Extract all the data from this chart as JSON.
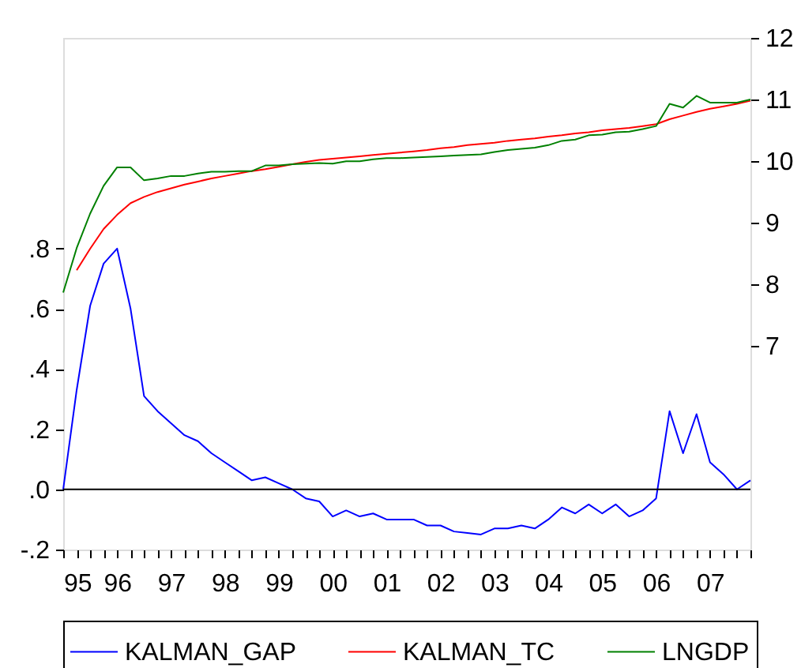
{
  "chart_data": {
    "type": "line",
    "x": [
      1995,
      1995.25,
      1995.5,
      1995.75,
      1996,
      1996.25,
      1996.5,
      1996.75,
      1997,
      1997.25,
      1997.5,
      1997.75,
      1998,
      1998.25,
      1998.5,
      1998.75,
      1999,
      1999.25,
      1999.5,
      1999.75,
      2000,
      2000.25,
      2000.5,
      2000.75,
      2001,
      2001.25,
      2001.5,
      2001.75,
      2002,
      2002.25,
      2002.5,
      2002.75,
      2003,
      2003.25,
      2003.5,
      2003.75,
      2004,
      2004.25,
      2004.5,
      2004.75,
      2005,
      2005.25,
      2005.5,
      2005.75,
      2006,
      2006.25,
      2006.5,
      2006.75,
      2007,
      2007.25,
      2007.5,
      2007.75
    ],
    "series": [
      {
        "name": "KALMAN_GAP",
        "color": "#0000ff",
        "values": [
          0,
          0.33,
          0.61,
          0.75,
          0.8,
          0.6,
          0.31,
          0.26,
          0.22,
          0.18,
          0.16,
          0.12,
          0.09,
          0.06,
          0.03,
          0.04,
          0.02,
          0.0,
          -0.03,
          -0.04,
          -0.09,
          -0.07,
          -0.09,
          -0.08,
          -0.1,
          -0.1,
          -0.1,
          -0.12,
          -0.12,
          -0.14,
          -0.145,
          -0.15,
          -0.13,
          -0.13,
          -0.12,
          -0.13,
          -0.1,
          -0.06,
          -0.08,
          -0.05,
          -0.08,
          -0.05,
          -0.09,
          -0.07,
          -0.03,
          0.26,
          0.12,
          0.25,
          0.09,
          0.05,
          0.0,
          0.03
        ]
      },
      {
        "name": "KALMAN_TC",
        "color": "#ff0000",
        "axis": "y2",
        "values": [
          null,
          8.23,
          8.58,
          8.9,
          9.13,
          9.32,
          9.42,
          9.5,
          9.56,
          9.62,
          9.67,
          9.72,
          9.76,
          9.8,
          9.84,
          9.87,
          9.91,
          9.95,
          9.99,
          10.02,
          10.04,
          10.06,
          10.08,
          10.1,
          10.12,
          10.14,
          10.16,
          10.18,
          10.21,
          10.23,
          10.26,
          10.28,
          10.3,
          10.33,
          10.35,
          10.37,
          10.4,
          10.42,
          10.45,
          10.47,
          10.5,
          10.52,
          10.54,
          10.57,
          10.6,
          10.68,
          10.74,
          10.8,
          10.85,
          10.89,
          10.93,
          10.98
        ]
      },
      {
        "name": "LNGDP",
        "color": "#008000",
        "axis": "y2",
        "values": [
          7.87,
          8.59,
          9.15,
          9.6,
          9.9,
          9.9,
          9.69,
          9.72,
          9.76,
          9.76,
          9.8,
          9.83,
          9.83,
          9.84,
          9.84,
          9.93,
          9.93,
          9.95,
          9.96,
          9.97,
          9.96,
          10.0,
          10.0,
          10.03,
          10.05,
          10.05,
          10.06,
          10.07,
          10.08,
          10.09,
          10.1,
          10.11,
          10.15,
          10.18,
          10.2,
          10.22,
          10.26,
          10.33,
          10.35,
          10.42,
          10.43,
          10.47,
          10.48,
          10.52,
          10.57,
          10.93,
          10.87,
          11.06,
          10.95,
          10.95,
          10.95,
          11.0
        ]
      }
    ],
    "xlim": [
      1995,
      2007.75
    ],
    "xticks": [
      {
        "value": 1995,
        "label": "95"
      },
      {
        "value": 1995.25,
        "label": null
      },
      {
        "value": 1995.5,
        "label": null
      },
      {
        "value": 1995.75,
        "label": null
      },
      {
        "value": 1996,
        "label": "96"
      },
      {
        "value": 1996.25,
        "label": null
      },
      {
        "value": 1996.5,
        "label": null
      },
      {
        "value": 1996.75,
        "label": null
      },
      {
        "value": 1997,
        "label": "97"
      },
      {
        "value": 1997.25,
        "label": null
      },
      {
        "value": 1997.5,
        "label": null
      },
      {
        "value": 1997.75,
        "label": null
      },
      {
        "value": 1998,
        "label": "98"
      },
      {
        "value": 1998.25,
        "label": null
      },
      {
        "value": 1998.5,
        "label": null
      },
      {
        "value": 1998.75,
        "label": null
      },
      {
        "value": 1999,
        "label": "99"
      },
      {
        "value": 1999.25,
        "label": null
      },
      {
        "value": 1999.5,
        "label": null
      },
      {
        "value": 1999.75,
        "label": null
      },
      {
        "value": 2000,
        "label": "00"
      },
      {
        "value": 2000.25,
        "label": null
      },
      {
        "value": 2000.5,
        "label": null
      },
      {
        "value": 2000.75,
        "label": null
      },
      {
        "value": 2001,
        "label": "01"
      },
      {
        "value": 2001.25,
        "label": null
      },
      {
        "value": 2001.5,
        "label": null
      },
      {
        "value": 2001.75,
        "label": null
      },
      {
        "value": 2002,
        "label": "02"
      },
      {
        "value": 2002.25,
        "label": null
      },
      {
        "value": 2002.5,
        "label": null
      },
      {
        "value": 2002.75,
        "label": null
      },
      {
        "value": 2003,
        "label": "03"
      },
      {
        "value": 2003.25,
        "label": null
      },
      {
        "value": 2003.5,
        "label": null
      },
      {
        "value": 2003.75,
        "label": null
      },
      {
        "value": 2004,
        "label": "04"
      },
      {
        "value": 2004.25,
        "label": null
      },
      {
        "value": 2004.5,
        "label": null
      },
      {
        "value": 2004.75,
        "label": null
      },
      {
        "value": 2005,
        "label": "05"
      },
      {
        "value": 2005.25,
        "label": null
      },
      {
        "value": 2005.5,
        "label": null
      },
      {
        "value": 2005.75,
        "label": null
      },
      {
        "value": 2006,
        "label": "06"
      },
      {
        "value": 2006.25,
        "label": null
      },
      {
        "value": 2006.5,
        "label": null
      },
      {
        "value": 2006.75,
        "label": null
      },
      {
        "value": 2007,
        "label": "07"
      },
      {
        "value": 2007.25,
        "label": null
      },
      {
        "value": 2007.5,
        "label": null
      },
      {
        "value": 2007.75,
        "label": null
      }
    ],
    "ylim": [
      -0.2,
      1.5
    ],
    "yticks": [
      {
        "value": -0.2,
        "label": "-.2"
      },
      {
        "value": 0,
        "label": ".0"
      },
      {
        "value": 0.2,
        "label": ".2"
      },
      {
        "value": 0.4,
        "label": ".4"
      },
      {
        "value": 0.6,
        "label": ".6"
      },
      {
        "value": 0.8,
        "label": ".8"
      }
    ],
    "y2lim": [
      3.7,
      12
    ],
    "y2ticks": [
      7,
      8,
      9,
      10,
      11,
      12
    ],
    "ref_lines": [
      {
        "axis": "y",
        "value": 0,
        "color": "#000000"
      }
    ],
    "legend": "bottom",
    "grid": false,
    "marker": "none",
    "line_style": "solid"
  }
}
